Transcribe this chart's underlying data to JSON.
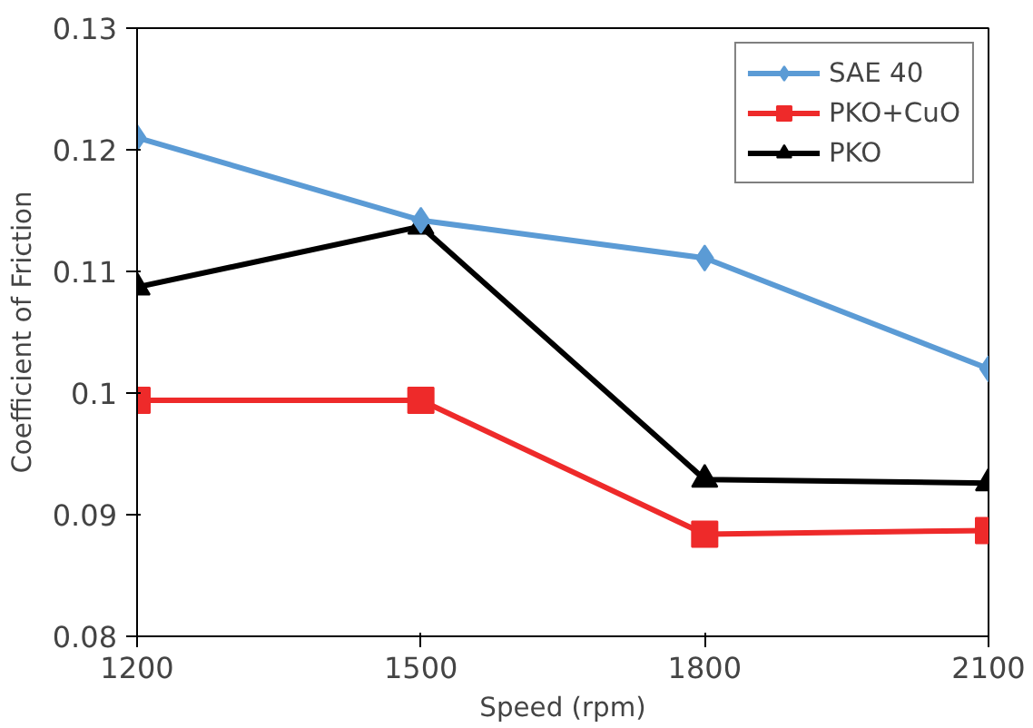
{
  "chart_data": {
    "type": "line",
    "xlabel": "Speed (rpm)",
    "ylabel": "Coefficient of Friction",
    "x": [
      1200,
      1500,
      1800,
      2100
    ],
    "xlim": [
      1200,
      2100
    ],
    "xticks": [
      1200,
      1500,
      1800,
      2100
    ],
    "ylim": [
      0.08,
      0.13
    ],
    "yticks": [
      {
        "value": 0.08,
        "label": "0.08"
      },
      {
        "value": 0.09,
        "label": "0.09"
      },
      {
        "value": 0.1,
        "label": "0.1"
      },
      {
        "value": 0.11,
        "label": "0.11"
      },
      {
        "value": 0.12,
        "label": "0.12"
      },
      {
        "value": 0.13,
        "label": "0.13"
      }
    ],
    "grid": false,
    "legend": "top right",
    "line_style": "solid",
    "series": [
      {
        "name": "SAE 40",
        "color": "#5b9bd5",
        "marker": "diamond",
        "values": [
          0.121,
          0.1142,
          0.1111,
          0.102
        ]
      },
      {
        "name": "PKO+CuO",
        "color": "#ee2a2a",
        "marker": "square",
        "values": [
          0.0994,
          0.0994,
          0.0884,
          0.0887
        ]
      },
      {
        "name": "PKO",
        "color": "#000000",
        "marker": "triangle",
        "values": [
          0.1087,
          0.1137,
          0.0929,
          0.0926
        ]
      }
    ]
  }
}
